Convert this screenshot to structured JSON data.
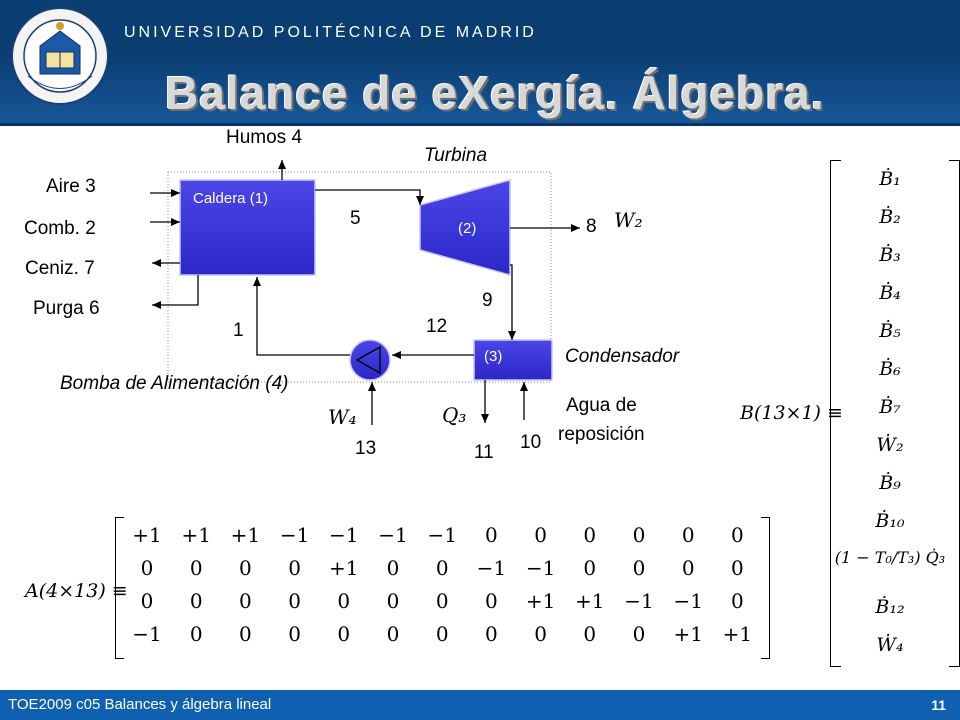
{
  "header": {
    "university": "UNIVERSIDAD POLITÉCNICA DE MADRID",
    "title": "Balance de eXergía. Álgebra."
  },
  "footer": {
    "course": "TOE2009 c05 Balances y álgebra lineal",
    "page": "11"
  },
  "diagram": {
    "caldera": "Caldera (1)",
    "turbina_box": "(2)",
    "condensador_box": "(3)",
    "humos": "Humos 4",
    "turbina": "Turbina",
    "aire": "Aire  3",
    "comb": "Comb. 2",
    "ceniz": "Ceniz. 7",
    "purga": "Purga 6",
    "n5": "5",
    "n8": "8",
    "w2": "W₂",
    "n9": "9",
    "n12": "12",
    "n1": "1",
    "condensador": "Condensador",
    "bomba": "Bomba de Alimentación (4)",
    "w4": "W₄",
    "q3": "Q₃",
    "agua": "Agua de",
    "reposicion": "reposición",
    "n13": "13",
    "n11": "11",
    "n10": "10"
  },
  "b_vector": {
    "label": "B(13×1) ≡",
    "items": [
      "Ḃ₁",
      "Ḃ₂",
      "Ḃ₃",
      "Ḃ₄",
      "Ḃ₅",
      "Ḃ₆",
      "Ḃ₇",
      "Ẇ₂",
      "Ḃ₉",
      "Ḃ₁₀",
      "(1 − T₀/T₃) Q̇₃",
      "Ḃ₁₂",
      "Ẇ₄"
    ]
  },
  "a_matrix": {
    "label": "A(4×13) ≡",
    "rows": [
      [
        "+1",
        "+1",
        "+1",
        "−1",
        "−1",
        "−1",
        "−1",
        "0",
        "0",
        "0",
        "0",
        "0",
        "0"
      ],
      [
        "0",
        "0",
        "0",
        "0",
        "+1",
        "0",
        "0",
        "−1",
        "−1",
        "0",
        "0",
        "0",
        "0"
      ],
      [
        "0",
        "0",
        "0",
        "0",
        "0",
        "0",
        "0",
        "0",
        "+1",
        "+1",
        "−1",
        "−1",
        "0"
      ],
      [
        "−1",
        "0",
        "0",
        "0",
        "0",
        "0",
        "0",
        "0",
        "0",
        "0",
        "0",
        "+1",
        "+1"
      ]
    ]
  }
}
